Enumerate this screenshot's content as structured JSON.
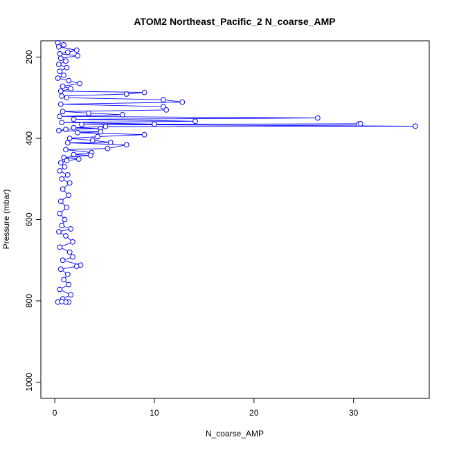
{
  "chart_data": {
    "type": "scatter",
    "title": "ATOM2 Northeast_Pacific_2 N_coarse_AMP",
    "xlabel": "N_coarse_AMP",
    "ylabel": "Pressure (mbar)",
    "xlim": [
      -1.4,
      37.6
    ],
    "ylim": [
      1040,
      160
    ],
    "y_reversed": true,
    "x_ticks": [
      0,
      10,
      20,
      30
    ],
    "y_ticks": [
      200,
      400,
      600,
      800,
      1000
    ],
    "grid": false,
    "legend": "none",
    "series": [
      {
        "color": "#0000ff",
        "marker": "open-circle",
        "connected": true,
        "points": [
          [
            0.3,
            165
          ],
          [
            0.9,
            170
          ],
          [
            0.4,
            175
          ],
          [
            2.2,
            183
          ],
          [
            1.3,
            188
          ],
          [
            0.5,
            192
          ],
          [
            2.3,
            197
          ],
          [
            0.6,
            203
          ],
          [
            1.1,
            210
          ],
          [
            0.4,
            218
          ],
          [
            1.2,
            226
          ],
          [
            0.5,
            235
          ],
          [
            0.9,
            245
          ],
          [
            0.3,
            252
          ],
          [
            1.4,
            258
          ],
          [
            2.5,
            265
          ],
          [
            0.8,
            272
          ],
          [
            1.6,
            278
          ],
          [
            0.6,
            284
          ],
          [
            9.0,
            287
          ],
          [
            7.2,
            291
          ],
          [
            0.7,
            296
          ],
          [
            1.2,
            300
          ],
          [
            10.9,
            305
          ],
          [
            12.8,
            311
          ],
          [
            0.6,
            316
          ],
          [
            10.9,
            322
          ],
          [
            11.2,
            330
          ],
          [
            0.8,
            334
          ],
          [
            3.4,
            338
          ],
          [
            6.8,
            342
          ],
          [
            0.5,
            346
          ],
          [
            26.4,
            350
          ],
          [
            1.9,
            353
          ],
          [
            14.1,
            358
          ],
          [
            0.7,
            361
          ],
          [
            10.0,
            365
          ],
          [
            30.5,
            365
          ],
          [
            30.7,
            364
          ],
          [
            2.7,
            366
          ],
          [
            36.2,
            370
          ],
          [
            5.1,
            371
          ],
          [
            1.9,
            374
          ],
          [
            4.6,
            376
          ],
          [
            1.1,
            378
          ],
          [
            0.4,
            381
          ],
          [
            4.6,
            384
          ],
          [
            2.3,
            386
          ],
          [
            9.0,
            391
          ],
          [
            4.3,
            396
          ],
          [
            1.5,
            400
          ],
          [
            3.8,
            405
          ],
          [
            5.6,
            410
          ],
          [
            1.3,
            411
          ],
          [
            7.2,
            416
          ],
          [
            5.3,
            425
          ],
          [
            1.1,
            428
          ],
          [
            3.7,
            435
          ],
          [
            1.9,
            440
          ],
          [
            3.6,
            442
          ],
          [
            0.9,
            447
          ],
          [
            2.4,
            451
          ],
          [
            1.2,
            455
          ],
          [
            0.6,
            460
          ],
          [
            1.0,
            470
          ],
          [
            0.5,
            480
          ],
          [
            1.3,
            490
          ],
          [
            0.7,
            500
          ],
          [
            1.5,
            510
          ],
          [
            0.8,
            525
          ],
          [
            1.4,
            540
          ],
          [
            0.6,
            555
          ],
          [
            1.2,
            570
          ],
          [
            0.5,
            585
          ],
          [
            1.0,
            600
          ],
          [
            0.7,
            615
          ],
          [
            1.6,
            623
          ],
          [
            0.4,
            630
          ],
          [
            1.1,
            640
          ],
          [
            1.8,
            655
          ],
          [
            0.5,
            668
          ],
          [
            1.5,
            680
          ],
          [
            1.8,
            692
          ],
          [
            0.8,
            700
          ],
          [
            2.6,
            712
          ],
          [
            2.2,
            715
          ],
          [
            0.6,
            722
          ],
          [
            1.3,
            735
          ],
          [
            0.9,
            748
          ],
          [
            1.4,
            760
          ],
          [
            0.5,
            772
          ],
          [
            1.6,
            785
          ],
          [
            0.8,
            795
          ],
          [
            1.4,
            803
          ],
          [
            1.1,
            803
          ],
          [
            0.3,
            803
          ],
          [
            0.7,
            802
          ]
        ]
      }
    ]
  }
}
